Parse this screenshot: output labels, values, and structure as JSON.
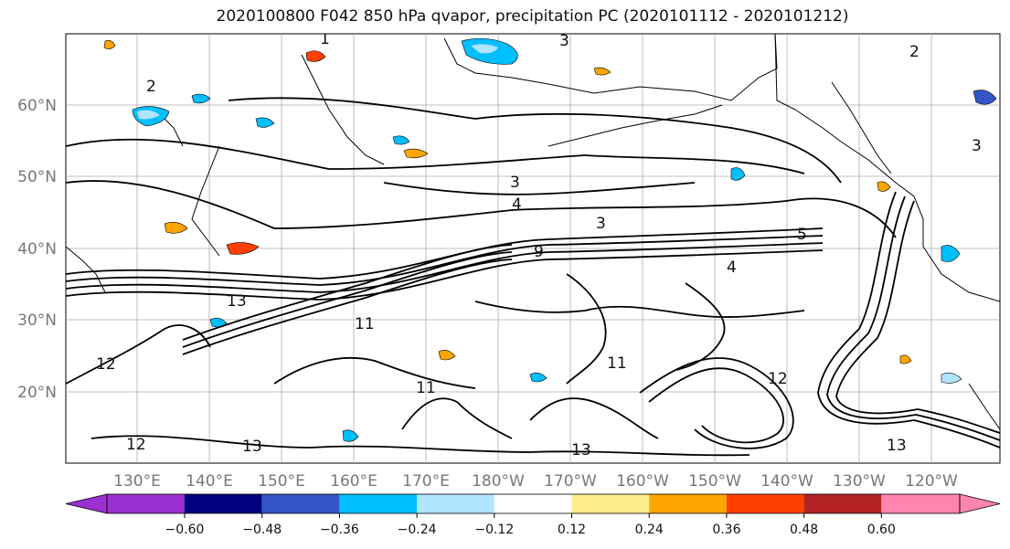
{
  "title": "2020100800 F042 850 hPa qvapor, precipitation PC (2020101112 - 2020101212)",
  "map": {
    "lon_ticks": [
      "130°E",
      "140°E",
      "150°E",
      "160°E",
      "170°E",
      "180°W",
      "170°W",
      "160°W",
      "150°W",
      "140°W",
      "130°W",
      "120°W"
    ],
    "lat_ticks": [
      "60°N",
      "50°N",
      "40°N",
      "30°N",
      "20°N"
    ]
  },
  "colorbar": {
    "colors": [
      "#9b30d0",
      "#000080",
      "#3355c8",
      "#00bfff",
      "#b0e4ff",
      "#ffffff",
      "#ffec8a",
      "#ffa500",
      "#ff4000",
      "#b22222",
      "#ff85b0"
    ],
    "ticks": [
      "−0.60",
      "−0.48",
      "−0.36",
      "−0.24",
      "−0.12",
      "0.12",
      "0.24",
      "0.36",
      "0.48",
      "0.60"
    ]
  },
  "contour_labels": [
    "1",
    "2",
    "3",
    "4",
    "5",
    "9",
    "11",
    "12",
    "13"
  ]
}
